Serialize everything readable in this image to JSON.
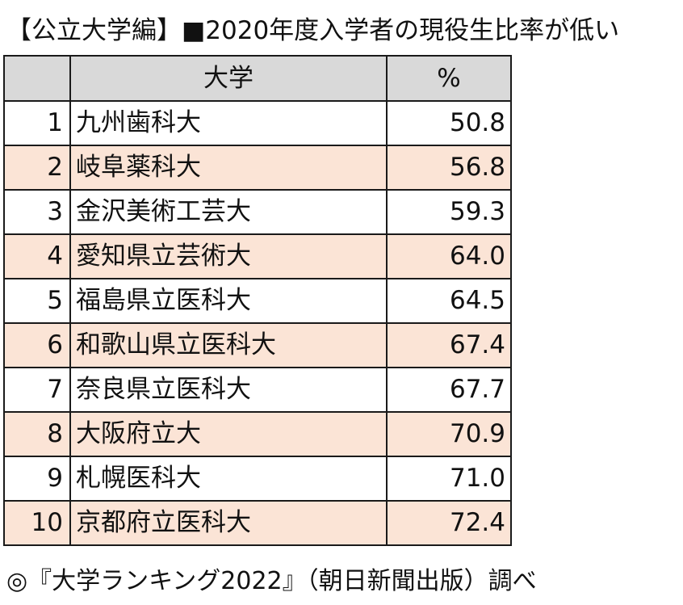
{
  "title": "【公立大学編】■2020年度入学者の現役生比率が低い",
  "table": {
    "headers": [
      "",
      "大学",
      "%"
    ],
    "rows": [
      {
        "rank": "1",
        "university": "九州歯科大",
        "percent": "50.8"
      },
      {
        "rank": "2",
        "university": "岐阜薬科大",
        "percent": "56.8"
      },
      {
        "rank": "3",
        "university": "金沢美術工芸大",
        "percent": "59.3"
      },
      {
        "rank": "4",
        "university": "愛知県立芸術大",
        "percent": "64.0"
      },
      {
        "rank": "5",
        "university": "福島県立医科大",
        "percent": "64.5"
      },
      {
        "rank": "6",
        "university": "和歌山県立医科大",
        "percent": "67.4"
      },
      {
        "rank": "7",
        "university": "奈良県立医科大",
        "percent": "67.7"
      },
      {
        "rank": "8",
        "university": "大阪府立大",
        "percent": "70.9"
      },
      {
        "rank": "9",
        "university": "札幌医科大",
        "percent": "71.0"
      },
      {
        "rank": "10",
        "university": "京都府立医科大",
        "percent": "72.4"
      }
    ]
  },
  "source": "◎『大学ランキング2022』（朝日新聞出版）調べ",
  "colors": {
    "header_bg": "#d9d9d9",
    "shaded_row_bg": "#fbe4d6",
    "plain_row_bg": "#ffffff",
    "border": "#1a1a1a"
  }
}
